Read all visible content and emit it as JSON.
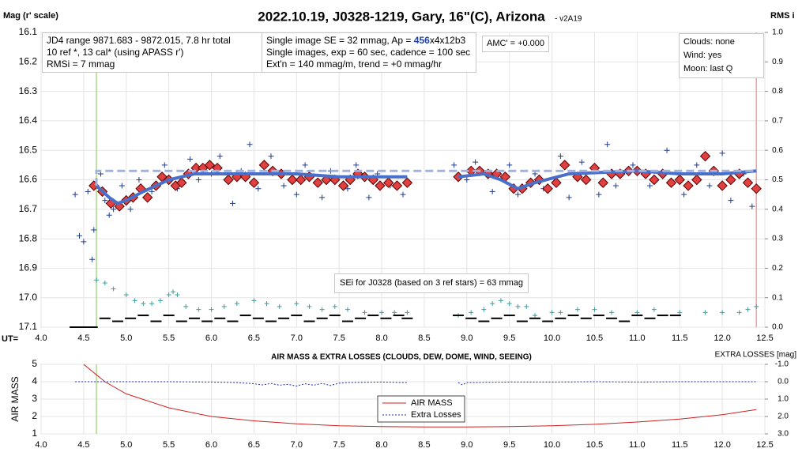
{
  "chart_data": [
    {
      "type": "scatter",
      "title": "2022.10.19, J0328-1219, Gary, 16\"(C), Arizona",
      "subtitle": " - v2A19",
      "y_label": "Mag (r' scale)",
      "y2_label": "RMS i",
      "x_label": "UT=",
      "xlim": [
        4.0,
        12.5
      ],
      "xticks": [
        {
          "value": 4,
          "label": "4.0"
        },
        4.5,
        {
          "value": 5,
          "label": "5.0"
        },
        5.5,
        {
          "value": 6,
          "label": "6.0"
        },
        6.5,
        {
          "value": 7,
          "label": "7.0"
        },
        7.5,
        {
          "value": 8,
          "label": "8.0"
        },
        8.5,
        {
          "value": 9,
          "label": "9.0"
        },
        9.5,
        {
          "value": 10,
          "label": "10.0"
        },
        10.5,
        {
          "value": 11,
          "label": "11.0"
        },
        11.5,
        {
          "value": 12,
          "label": "12.0"
        },
        12.5
      ],
      "ylim": [
        16.1,
        17.1
      ],
      "y_inverted": true,
      "yticks": [
        16.1,
        16.2,
        16.3,
        16.4,
        16.5,
        16.6,
        16.7,
        16.8,
        16.9,
        {
          "value": 17,
          "label": "17.0"
        },
        17.1
      ],
      "y2lim": [
        0,
        1
      ],
      "y2ticks": [
        {
          "value": 0,
          "label": "0.0"
        },
        0.1,
        0.2,
        0.3,
        0.4,
        0.5,
        0.6,
        0.7,
        0.8,
        0.9,
        {
          "value": 1,
          "label": "1.0"
        }
      ],
      "grid": true,
      "vlines": [
        {
          "x": 4.65,
          "color": "#a8d88a"
        },
        {
          "x": 12.4,
          "color": "#f4a0a0"
        }
      ],
      "series": [
        {
          "type": "scatter",
          "marker": "cross",
          "color": "#1f3c8c",
          "x": [
            4.4,
            4.45,
            4.5,
            4.55,
            4.6,
            4.62,
            4.7,
            4.75,
            4.8,
            4.85,
            4.95,
            5.05,
            5.15,
            5.3,
            5.45,
            5.6,
            5.75,
            5.85,
            6.0,
            6.1,
            6.25,
            6.35,
            6.45,
            6.55,
            6.7,
            6.85,
            7.0,
            7.1,
            7.3,
            7.4,
            7.6,
            7.7,
            7.85,
            7.95,
            8.1,
            8.25,
            8.85,
            9.0,
            9.1,
            9.3,
            9.5,
            9.6,
            9.8,
            9.9,
            10.1,
            10.2,
            10.35,
            10.55,
            10.65,
            10.75,
            10.95,
            11.15,
            11.35,
            11.55,
            11.7,
            11.85,
            12.0,
            12.1,
            12.25,
            12.35
          ],
          "values": [
            16.65,
            16.79,
            16.81,
            16.64,
            16.87,
            16.77,
            16.58,
            16.67,
            16.72,
            16.7,
            16.62,
            16.7,
            16.6,
            16.64,
            16.55,
            16.63,
            16.53,
            16.6,
            16.58,
            16.52,
            16.68,
            16.57,
            16.48,
            16.63,
            16.52,
            16.62,
            16.65,
            16.55,
            16.66,
            16.57,
            16.63,
            16.55,
            16.66,
            16.58,
            16.62,
            16.65,
            16.55,
            16.6,
            16.54,
            16.64,
            16.55,
            16.65,
            16.58,
            16.63,
            16.52,
            16.66,
            16.54,
            16.65,
            16.48,
            16.62,
            16.55,
            16.62,
            16.5,
            16.65,
            16.55,
            16.62,
            16.51,
            16.67,
            16.58,
            16.69
          ]
        },
        {
          "type": "scatter",
          "marker": "diamond",
          "color": "#e04040",
          "x": [
            4.62,
            4.72,
            4.82,
            4.92,
            5.0,
            5.08,
            5.17,
            5.25,
            5.35,
            5.42,
            5.5,
            5.58,
            5.65,
            5.73,
            5.82,
            5.9,
            5.98,
            6.07,
            6.2,
            6.3,
            6.4,
            6.5,
            6.62,
            6.72,
            6.82,
            6.95,
            7.05,
            7.15,
            7.25,
            7.35,
            7.45,
            7.55,
            7.63,
            7.72,
            7.8,
            7.9,
            7.98,
            8.08,
            8.18,
            8.3,
            8.9,
            9.05,
            9.15,
            9.25,
            9.35,
            9.45,
            9.55,
            9.65,
            9.75,
            9.85,
            9.95,
            10.05,
            10.15,
            10.3,
            10.4,
            10.5,
            10.6,
            10.7,
            10.8,
            10.9,
            11.0,
            11.1,
            11.2,
            11.3,
            11.4,
            11.5,
            11.6,
            11.7,
            11.8,
            11.9,
            12.0,
            12.1,
            12.2,
            12.3,
            12.4
          ],
          "values": [
            16.62,
            16.64,
            16.68,
            16.69,
            16.67,
            16.66,
            16.63,
            16.66,
            16.62,
            16.59,
            16.6,
            16.62,
            16.61,
            16.58,
            16.56,
            16.56,
            16.55,
            16.56,
            16.6,
            16.59,
            16.59,
            16.61,
            16.55,
            16.57,
            16.58,
            16.6,
            16.6,
            16.59,
            16.61,
            16.6,
            16.6,
            16.62,
            16.6,
            16.58,
            16.59,
            16.6,
            16.62,
            16.61,
            16.62,
            16.61,
            16.59,
            16.57,
            16.57,
            16.58,
            16.58,
            16.59,
            16.63,
            16.63,
            16.61,
            16.6,
            16.63,
            16.61,
            16.55,
            16.59,
            16.6,
            16.56,
            16.61,
            16.58,
            16.58,
            16.57,
            16.57,
            16.58,
            16.6,
            16.58,
            16.61,
            16.6,
            16.62,
            16.6,
            16.52,
            16.57,
            16.62,
            16.6,
            16.58,
            16.61,
            16.63
          ]
        },
        {
          "type": "line",
          "color": "#4a6fc8",
          "width": 4,
          "x": [
            4.65,
            4.8,
            4.9,
            5.0,
            5.2,
            5.5,
            5.8,
            6.0,
            6.5,
            7.0,
            7.5,
            8.0,
            8.3,
            null,
            8.9,
            9.2,
            9.4,
            9.6,
            9.8,
            10.2,
            11.0,
            11.5,
            12.0,
            12.4
          ],
          "values": [
            16.62,
            16.66,
            16.68,
            16.67,
            16.64,
            16.6,
            16.58,
            16.58,
            16.58,
            16.58,
            16.59,
            16.59,
            16.59,
            null,
            16.59,
            16.58,
            16.6,
            16.63,
            16.61,
            16.58,
            16.57,
            16.58,
            16.58,
            16.57
          ]
        },
        {
          "type": "line",
          "color": "#9fb2e0",
          "width": 3,
          "dashed": true,
          "x": [
            4.65,
            4.65,
            12.4
          ],
          "values": [
            16.62,
            16.57,
            16.57
          ]
        },
        {
          "type": "scatter",
          "marker": "cross",
          "size": 3,
          "color": "#3aa0a0",
          "axis": "y2",
          "x": [
            4.65,
            4.75,
            4.85,
            5.0,
            5.1,
            5.2,
            5.3,
            5.4,
            5.5,
            5.55,
            5.6,
            5.7,
            5.85,
            6.0,
            6.15,
            6.3,
            6.5,
            6.65,
            6.8,
            7.0,
            7.15,
            7.3,
            7.45,
            7.6,
            7.8,
            8.0,
            8.15,
            8.3,
            8.9,
            9.05,
            9.2,
            9.3,
            9.4,
            9.5,
            9.6,
            9.7,
            9.8,
            10.0,
            10.1,
            10.3,
            10.5,
            10.7,
            11.0,
            11.2,
            11.5,
            11.8,
            12.0,
            12.2,
            12.3,
            12.4
          ],
          "values": [
            0.16,
            0.15,
            0.13,
            0.11,
            0.09,
            0.08,
            0.08,
            0.09,
            0.11,
            0.12,
            0.11,
            0.07,
            0.06,
            0.06,
            0.07,
            0.08,
            0.09,
            0.08,
            0.07,
            0.08,
            0.07,
            0.06,
            0.07,
            0.06,
            0.05,
            0.05,
            0.05,
            0.05,
            0.04,
            0.05,
            0.06,
            0.08,
            0.09,
            0.08,
            0.07,
            0.07,
            0.04,
            0.05,
            0.05,
            0.06,
            0.06,
            0.05,
            0.05,
            0.06,
            0.05,
            0.05,
            0.05,
            0.05,
            0.06,
            0.07
          ]
        },
        {
          "type": "scatter",
          "marker": "dash",
          "color": "#000000",
          "axis": "y2",
          "x": [
            4.4,
            4.45,
            4.5,
            4.55,
            4.6,
            4.75,
            4.9,
            5.05,
            5.2,
            5.35,
            5.5,
            5.65,
            5.8,
            5.95,
            6.1,
            6.25,
            6.4,
            6.55,
            6.7,
            6.85,
            7.0,
            7.15,
            7.3,
            7.45,
            7.6,
            7.75,
            7.9,
            8.05,
            8.2,
            8.3,
            8.9,
            9.05,
            9.2,
            9.35,
            9.5,
            9.65,
            9.8,
            9.95,
            10.1,
            10.25,
            10.4,
            10.55,
            10.7,
            10.85,
            11.0,
            11.15,
            11.3,
            11.45
          ],
          "values": [
            0.0,
            0.0,
            0.0,
            0.0,
            0.0,
            0.03,
            0.02,
            0.03,
            0.04,
            0.02,
            0.04,
            0.02,
            0.03,
            0.02,
            0.03,
            0.02,
            0.04,
            0.03,
            0.02,
            0.03,
            0.04,
            0.02,
            0.03,
            0.04,
            0.02,
            0.03,
            0.04,
            0.03,
            0.04,
            0.03,
            0.04,
            0.03,
            0.02,
            0.03,
            0.04,
            0.02,
            0.03,
            0.02,
            0.03,
            0.04,
            0.03,
            0.04,
            0.03,
            0.02,
            0.04,
            0.03,
            0.04,
            0.04
          ]
        }
      ],
      "annotations": {
        "info": [
          "JD4 range 9871.683 - 9872.015, 7.8 hr total",
          "10 ref *, 13 cal*  (using APASS r')",
          "RMSi = 7 mmag"
        ],
        "image": {
          "line1": [
            "Single image SE = 32 mmag, Ap = ",
            "456",
            "x4x12b3"
          ],
          "line2": "Single images, exp = 60 sec, cadence = 100 sec",
          "line3": "Ext'n = 140 mmag/m, trend = +0 mmag/hr"
        },
        "amc": "AMC' = +0.000",
        "conditions": [
          "Clouds: none",
          "Wind: yes",
          "Moon: last Q"
        ],
        "sei": "SEi for J0328 (based on 3 ref stars) = 63 mmag"
      }
    },
    {
      "type": "line",
      "title": "AIR MASS & EXTRA LOSSES (CLOUDS, DEW, DOME, WIND, SEEING)",
      "y_label": "AIR MASS",
      "y2_label": "EXTRA LOSSES [mag]",
      "xlim": [
        4.0,
        12.5
      ],
      "xticks": [
        {
          "value": 4,
          "label": "4.0"
        },
        4.5,
        {
          "value": 5,
          "label": "5.0"
        },
        5.5,
        {
          "value": 6,
          "label": "6.0"
        },
        6.5,
        {
          "value": 7,
          "label": "7.0"
        },
        7.5,
        {
          "value": 8,
          "label": "8.0"
        },
        8.5,
        {
          "value": 9,
          "label": "9.0"
        },
        9.5,
        {
          "value": 10,
          "label": "10.0"
        },
        10.5,
        {
          "value": 11,
          "label": "11.0"
        },
        11.5,
        {
          "value": 12,
          "label": "12.0"
        },
        12.5
      ],
      "ylim": [
        1,
        5
      ],
      "yticks": [
        1,
        2,
        3,
        4,
        5
      ],
      "y2lim": [
        -1,
        3
      ],
      "y2_inverted": true,
      "y2ticks": [
        {
          "value": -1,
          "label": "-1.0"
        },
        {
          "value": 0,
          "label": "0.0"
        },
        {
          "value": 1,
          "label": "1.0"
        },
        {
          "value": 2,
          "label": "2.0"
        },
        {
          "value": 3,
          "label": "3.0"
        }
      ],
      "grid": true,
      "vlines": [
        {
          "x": 4.65,
          "color": "#a8d88a"
        }
      ],
      "series": [
        {
          "name": "AIR MASS",
          "type": "line",
          "color": "#d02020",
          "width": 1,
          "x": [
            4.5,
            4.75,
            5.0,
            5.5,
            6.0,
            6.5,
            7.0,
            7.5,
            8.0,
            8.5,
            9.0,
            9.5,
            10.0,
            10.5,
            11.0,
            11.5,
            12.0,
            12.4
          ],
          "values": [
            5,
            4.0,
            3.3,
            2.5,
            2.0,
            1.75,
            1.58,
            1.47,
            1.42,
            1.4,
            1.4,
            1.42,
            1.47,
            1.55,
            1.68,
            1.85,
            2.1,
            2.4
          ]
        },
        {
          "name": "Extra Losses",
          "type": "line",
          "color": "#1a2fb0",
          "width": 1,
          "dashed": true,
          "axis": "y2",
          "x": [
            4.4,
            5.0,
            5.5,
            6.0,
            6.3,
            6.5,
            6.6,
            6.7,
            6.8,
            6.9,
            7.0,
            7.1,
            7.2,
            7.3,
            7.4,
            7.5,
            7.6,
            8.0,
            8.3,
            null,
            8.9,
            8.95,
            9.0,
            9.5,
            10.0,
            10.5,
            11.0,
            11.5,
            12.0,
            12.4
          ],
          "values": [
            0.0,
            0.0,
            0.0,
            0.02,
            0.05,
            0.12,
            0.18,
            0.1,
            0.2,
            0.15,
            0.25,
            0.12,
            0.2,
            0.1,
            0.22,
            0.08,
            0.05,
            0.02,
            0.05,
            null,
            0.05,
            0.18,
            0.05,
            0.02,
            0.02,
            0.0,
            0.02,
            0.0,
            0.0,
            0.0
          ]
        }
      ]
    }
  ]
}
